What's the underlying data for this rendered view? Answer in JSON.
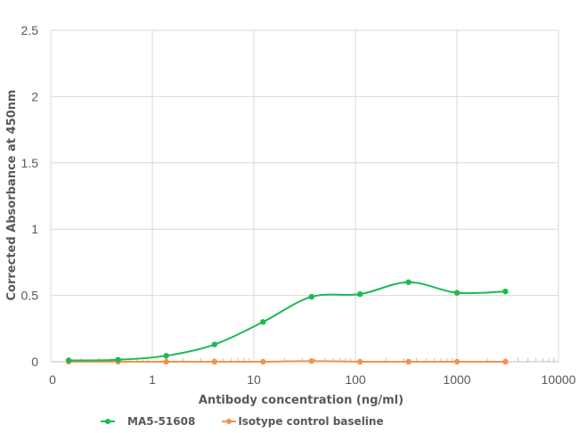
{
  "chart_data": {
    "type": "line",
    "title": "",
    "xlabel": "Antibody concentration (ng/ml)",
    "ylabel": "Corrected Absorbance at 450nm",
    "x_scale": "log",
    "x_tick_labels": [
      "0",
      "1",
      "10",
      "100",
      "1000",
      "10000"
    ],
    "y_tick_labels": [
      "0",
      "0.5",
      "1",
      "1.5",
      "2",
      "2.5"
    ],
    "ylim": [
      0,
      2.5
    ],
    "grid": true,
    "legend_position": "bottom",
    "x": [
      0.15,
      0.46,
      1.37,
      4.1,
      12.3,
      37,
      111,
      333,
      1000,
      3000
    ],
    "series": [
      {
        "name": "MA5-51608",
        "color": "#1db954",
        "marker": "circle",
        "values": [
          0.01,
          0.015,
          0.045,
          0.13,
          0.3,
          0.49,
          0.51,
          0.6,
          0.52,
          0.53
        ]
      },
      {
        "name": "Isotype control baseline",
        "color": "#f4924a",
        "marker": "circle",
        "values": [
          0.0,
          0.0,
          0.0,
          0.0,
          0.0,
          0.005,
          0.0,
          0.0,
          0.0,
          0.0
        ]
      }
    ]
  },
  "legend": {
    "items": [
      {
        "label": "MA5-51608",
        "color": "#1db954"
      },
      {
        "label": "Isotype control baseline",
        "color": "#f4924a"
      }
    ]
  }
}
